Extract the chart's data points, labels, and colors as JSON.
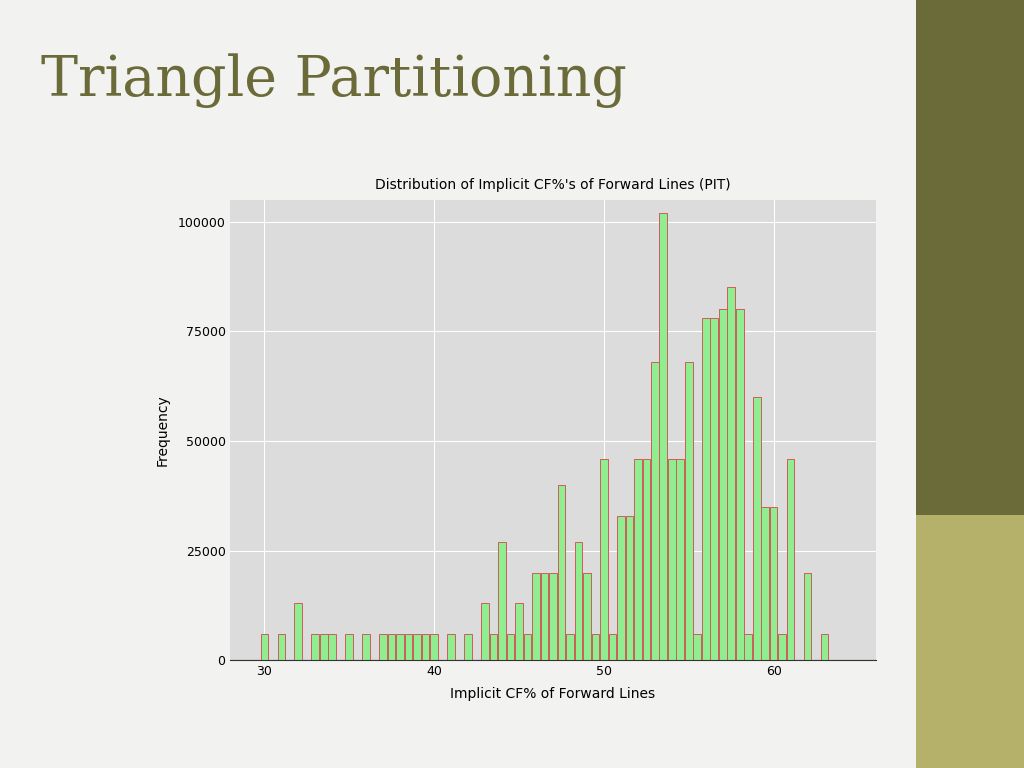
{
  "title": "Distribution of Implicit CF%'s of Forward Lines (PIT)",
  "xlabel": "Implicit CF% of Forward Lines",
  "ylabel": "Frequency",
  "slide_title": "Triangle Partitioning",
  "slide_title_color": "#6b6b3a",
  "plot_bg_color": "#dcdcdc",
  "bar_fill_color": "#90ee90",
  "bar_edge_color": "#cd5c5c",
  "xlim": [
    28,
    66
  ],
  "ylim": [
    0,
    105000
  ],
  "xticks": [
    30,
    40,
    50,
    60
  ],
  "yticks": [
    0,
    25000,
    50000,
    75000,
    100000
  ],
  "bar_width": 0.45,
  "sidebar_top_color": "#6b6b3a",
  "sidebar_bottom_color": "#b5b06a",
  "slide_bg": "#f2f2f0",
  "bins": [
    30.0,
    31.0,
    32.0,
    33.0,
    33.5,
    34.0,
    35.0,
    36.0,
    37.0,
    37.5,
    38.0,
    38.5,
    39.0,
    39.5,
    40.0,
    41.0,
    42.0,
    43.0,
    43.5,
    44.0,
    44.5,
    45.0,
    45.5,
    46.0,
    46.5,
    47.0,
    47.5,
    48.0,
    48.5,
    49.0,
    49.5,
    50.0,
    50.5,
    51.0,
    51.5,
    52.0,
    52.5,
    53.0,
    53.5,
    54.0,
    54.5,
    55.0,
    55.5,
    56.0,
    56.5,
    57.0,
    57.5,
    58.0,
    58.5,
    59.0,
    59.5,
    60.0,
    60.5,
    61.0,
    62.0,
    63.0
  ],
  "heights": [
    6000,
    6000,
    13000,
    6000,
    6000,
    6000,
    6000,
    6000,
    6000,
    6000,
    6000,
    6000,
    6000,
    6000,
    6000,
    6000,
    6000,
    13000,
    6000,
    27000,
    6000,
    13000,
    6000,
    20000,
    20000,
    20000,
    40000,
    6000,
    27000,
    20000,
    6000,
    46000,
    6000,
    33000,
    33000,
    46000,
    46000,
    68000,
    102000,
    46000,
    46000,
    68000,
    6000,
    78000,
    78000,
    80000,
    85000,
    80000,
    6000,
    60000,
    35000,
    35000,
    6000,
    46000,
    20000,
    6000
  ]
}
